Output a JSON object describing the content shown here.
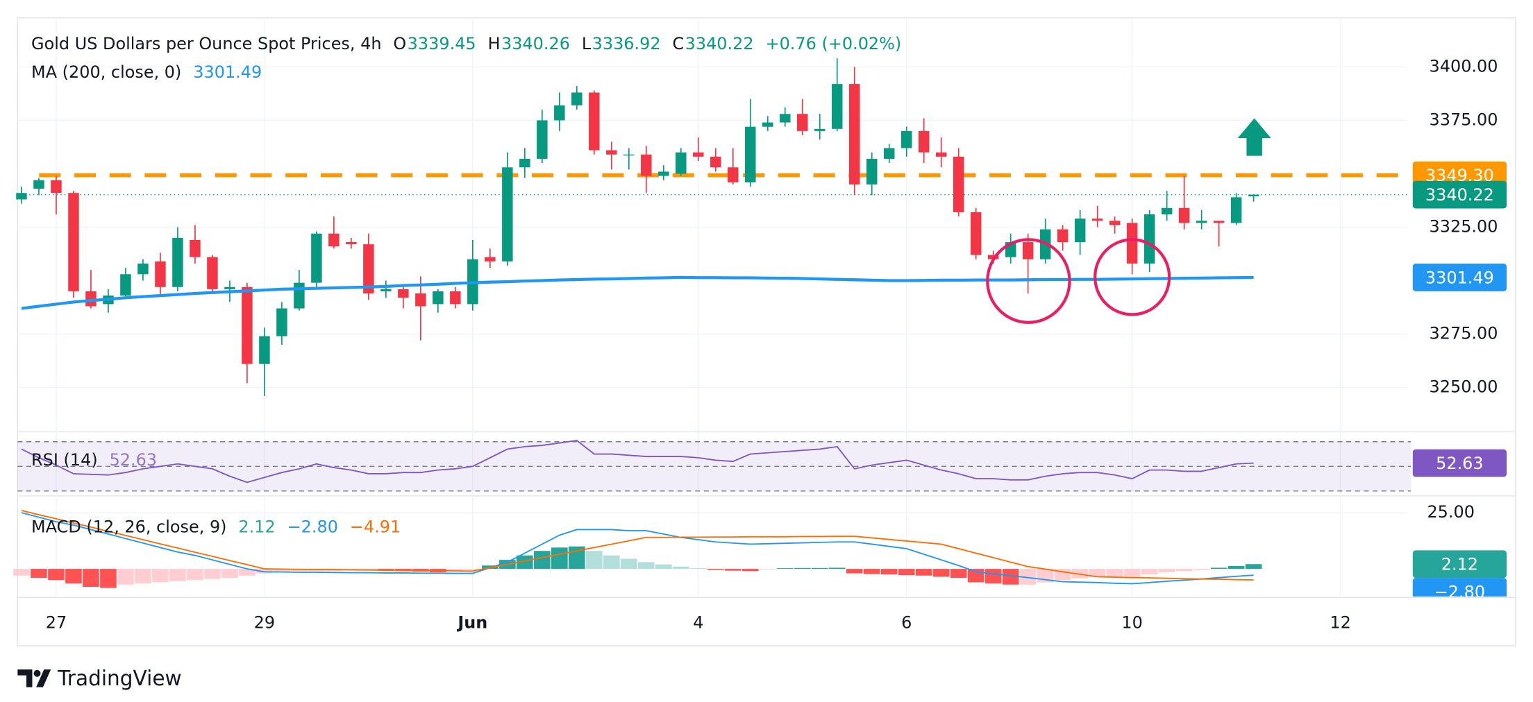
{
  "chart_data": {
    "type": "candlestick",
    "title": "Gold US Dollars per Ounce Spot Prices, 4h",
    "header": [
      {
        "label": "O",
        "value": 3339.45
      },
      {
        "label": "H",
        "value": 3340.26
      },
      {
        "label": "L",
        "value": 3336.92
      },
      {
        "label": "C",
        "value": 3340.22
      }
    ],
    "change": "+0.76 (+0.02%)",
    "up_color": "#089981",
    "down_color": "#f23645",
    "categories": [
      null,
      null,
      "27",
      null,
      null,
      null,
      null,
      null,
      null,
      null,
      null,
      null,
      null,
      null,
      "29",
      null,
      null,
      null,
      null,
      null,
      null,
      null,
      null,
      null,
      null,
      null,
      "Jun",
      null,
      null,
      null,
      null,
      null,
      null,
      null,
      null,
      null,
      null,
      null,
      null,
      "4",
      null,
      null,
      null,
      null,
      null,
      null,
      null,
      null,
      null,
      null,
      null,
      "6",
      null,
      null,
      null,
      null,
      null,
      null,
      null,
      null,
      null,
      null,
      null,
      null,
      "10",
      null,
      null,
      null,
      null,
      null,
      null,
      null,
      null,
      null,
      null,
      null,
      "12",
      null,
      null,
      null
    ],
    "open": [
      3338,
      3343,
      3347,
      3341,
      3295,
      3289,
      3293,
      3303,
      3309,
      3297,
      3319,
      3311,
      3296,
      3297,
      3261,
      3274,
      3287,
      3299,
      3322,
      3318,
      3317,
      3295,
      3296,
      3294,
      3289,
      3295,
      3289,
      3311,
      3309,
      3353,
      3357,
      3375,
      3382,
      3388,
      3361,
      3359,
      3359,
      3349,
      3350,
      3360,
      3358,
      3353,
      3346,
      3372,
      3374,
      3378,
      3370,
      3371,
      3392,
      3345,
      3357,
      3362,
      3370,
      3360,
      3358,
      3332,
      3312,
      3311,
      3318,
      3310,
      3324,
      3318,
      3329,
      3328,
      3327,
      3308,
      3331,
      3334,
      3327,
      3328,
      3327,
      3339.45,
      null,
      null,
      null,
      null,
      null,
      null,
      null,
      null
    ],
    "high": [
      3344,
      3348,
      3349,
      3342,
      3305,
      3296,
      3306,
      3310,
      3313,
      3325,
      3326,
      3312,
      3300,
      3299,
      3278,
      3290,
      3305,
      3323,
      3330,
      3320,
      3322,
      3300,
      3298,
      3302,
      3296,
      3297,
      3319,
      3315,
      3360,
      3362,
      3380,
      3388,
      3391,
      3389,
      3365,
      3362,
      3363,
      3354,
      3362,
      3367,
      3362,
      3362,
      3385,
      3377,
      3381,
      3385,
      3378,
      3404,
      3400,
      3360,
      3364,
      3372,
      3376,
      3367,
      3362,
      3334,
      3314,
      3322,
      3322,
      3329,
      3326,
      3333,
      3335,
      3330,
      3329,
      3333,
      3342,
      3349,
      3333,
      3328,
      3341,
      3340.26,
      null,
      null,
      null,
      null,
      null,
      null,
      null,
      null
    ],
    "low": [
      3336,
      3340,
      3331,
      3292,
      3287,
      3285,
      3292,
      3300,
      3293,
      3295,
      3308,
      3294,
      3290,
      3252,
      3246,
      3270,
      3286,
      3297,
      3315,
      3315,
      3291,
      3292,
      3287,
      3272,
      3285,
      3287,
      3286,
      3306,
      3307,
      3348,
      3355,
      3370,
      3380,
      3359,
      3352,
      3352,
      3341,
      3347,
      3349,
      3356,
      3351,
      3345,
      3344,
      3370,
      3372,
      3368,
      3366,
      3370,
      3340,
      3340,
      3355,
      3358,
      3355,
      3353,
      3330,
      3310,
      3308,
      3308,
      3294,
      3308,
      3314,
      3312,
      3325,
      3322,
      3303,
      3304,
      3328,
      3324,
      3324,
      3316,
      3326,
      3336.92,
      null,
      null,
      null,
      null,
      null,
      null,
      null,
      null
    ],
    "close": [
      3341,
      3347,
      3341,
      3295,
      3288,
      3293,
      3303,
      3308,
      3297,
      3320,
      3311,
      3296,
      3297,
      3261,
      3274,
      3287,
      3299,
      3322,
      3316,
      3317,
      3294,
      3296,
      3292,
      3288,
      3295,
      3289,
      3310,
      3309,
      3353,
      3357,
      3375,
      3382,
      3388,
      3361,
      3359,
      3359,
      3349,
      3351,
      3360,
      3358,
      3353,
      3346,
      3372,
      3374,
      3378,
      3370,
      3371,
      3392,
      3345,
      3357,
      3362,
      3370,
      3360,
      3358,
      3332,
      3312,
      3310,
      3318,
      3310,
      3324,
      3318,
      3329,
      3328,
      3326,
      3308,
      3331,
      3334,
      3327,
      3328,
      3327,
      3339,
      3340.22,
      null,
      null,
      null,
      null,
      null,
      null,
      null,
      null
    ],
    "ylim": [
      3229.7,
      3423
    ],
    "yticks": [
      {
        "value": 3250,
        "label": "3250.00"
      },
      {
        "value": 3275,
        "label": "3275.00"
      },
      {
        "value": 3325,
        "label": "3325.00"
      },
      {
        "value": 3375,
        "label": "3375.00"
      },
      {
        "value": 3400,
        "label": "3400.00"
      }
    ],
    "grid": true,
    "resistance": {
      "value": 3349.3,
      "label": "3349.30",
      "color": "#ff9800"
    },
    "ma": {
      "name": "MA (200, close, 0)",
      "value": 3301.49,
      "color": "#2196f3",
      "values": [
        3287,
        3288,
        3289,
        3290,
        3290.7,
        3291.3,
        3292,
        3292.5,
        3293,
        3293.5,
        3294,
        3294.4,
        3294.8,
        3295.2,
        3295.6,
        3296,
        3296.2,
        3296.4,
        3296.6,
        3296.8,
        3297,
        3297.3,
        3297.7,
        3298,
        3298.3,
        3298.7,
        3299,
        3299.3,
        3299.5,
        3299.8,
        3300,
        3300.3,
        3300.5,
        3300.7,
        3300.8,
        3301,
        3301.2,
        3301.3,
        3301.5,
        3301.4,
        3301.4,
        3301.3,
        3301.3,
        3301.2,
        3301.1,
        3301,
        3300.8,
        3300.6,
        3300.4,
        3300.2,
        3300,
        3300,
        3300.1,
        3300.2,
        3300.2,
        3300.3,
        3300.3,
        3300.3,
        3300.4,
        3300.5,
        3300.5,
        3300.6,
        3300.6,
        3300.7,
        3300.8,
        3300.9,
        3301,
        3301.1,
        3301.2,
        3301.3,
        3301.4,
        3301.49,
        null,
        null,
        null,
        null,
        null,
        null,
        null,
        null
      ]
    },
    "rsi": {
      "name": "RSI (14)",
      "value": 52.63,
      "color": "#7e57c2",
      "ylim": [
        28.4,
        76.4
      ],
      "levels": [
        30,
        50,
        70
      ],
      "values": [
        64,
        57,
        51,
        44,
        43.5,
        43,
        45,
        48,
        50,
        52,
        50,
        48,
        42,
        37,
        41,
        45,
        48,
        52,
        49,
        47,
        44,
        44,
        45,
        45,
        47,
        48,
        50,
        57,
        64,
        66,
        67,
        69,
        71,
        60,
        60,
        59,
        58,
        58,
        58,
        57,
        55,
        54,
        60,
        61,
        62,
        63,
        64,
        66,
        48,
        51,
        53,
        55,
        51,
        47,
        44,
        40,
        40,
        39,
        39,
        42,
        44,
        45,
        45,
        43,
        40,
        47,
        47,
        46,
        46,
        49,
        52,
        52.63,
        null,
        null,
        null,
        null,
        null,
        null,
        null,
        null
      ]
    },
    "macd": {
      "name": "MACD (12, 26, close, 9)",
      "ylim": [
        -12.3,
        31.6
      ],
      "yticks": [
        {
          "value": 25,
          "label": "25.00"
        }
      ],
      "histogram": {
        "value": 2.12,
        "color": "#26a69a",
        "values": [
          -3,
          -4,
          -5,
          -6.5,
          -8,
          -8.5,
          -7,
          -6.5,
          -6,
          -5.5,
          -5,
          -4.5,
          -4,
          -3,
          -2,
          -1.5,
          -1,
          -1,
          -1,
          -0.8,
          -0.5,
          -0.8,
          -1,
          -1.2,
          -1.5,
          -1,
          -0.5,
          1.5,
          4,
          6,
          8,
          9.5,
          10,
          8,
          6,
          4.5,
          3,
          2,
          1,
          0.3,
          -0.5,
          -0.8,
          -1,
          -0.3,
          0.3,
          0.4,
          0.4,
          0.5,
          -2,
          -2.3,
          -2.5,
          -2.8,
          -3,
          -3.5,
          -4,
          -6,
          -6.5,
          -7,
          -7,
          -6,
          -5,
          -4.2,
          -3.5,
          -3.5,
          -3.5,
          -2.5,
          -1.5,
          -1,
          -0.5,
          0.5,
          1.3,
          2.12,
          null,
          null,
          null,
          null,
          null,
          null,
          null,
          null
        ]
      },
      "macd_line": {
        "value": -2.8,
        "label": "−2.80",
        "color": "#2196f3",
        "values": [
          25,
          23,
          21,
          19.5,
          17.5,
          15.5,
          13.5,
          11.5,
          9.5,
          7.5,
          6,
          4,
          2,
          0,
          -1.3,
          -1.4,
          -1.5,
          -1.5,
          -1.6,
          -1.7,
          -1.7,
          -1.8,
          -1.8,
          -1.9,
          -1.9,
          -2,
          -2,
          0.5,
          3,
          7,
          11,
          15,
          17.5,
          17.5,
          17.5,
          17,
          17,
          15.5,
          14,
          13,
          12,
          11.5,
          11,
          11.2,
          11.4,
          11.6,
          11.8,
          12,
          12,
          11,
          10,
          9,
          6.5,
          4,
          1.5,
          -1.3,
          -2.2,
          -3,
          -3.9,
          -4.8,
          -5.7,
          -5.9,
          -6.1,
          -6.4,
          -6.6,
          -6.1,
          -5.5,
          -5,
          -4.5,
          -3.9,
          -3.3,
          -2.8,
          null,
          null,
          null,
          null,
          null,
          null,
          null,
          null
        ]
      },
      "signal": {
        "value": -4.91,
        "label": "−4.91",
        "color": "#ff6d00",
        "values": [
          26,
          24.1,
          22.3,
          20.4,
          18.6,
          16.7,
          14.9,
          13,
          11.1,
          9.3,
          7.4,
          5.6,
          3.7,
          1.9,
          0,
          -0.1,
          -0.2,
          -0.3,
          -0.3,
          -0.4,
          -0.5,
          -0.6,
          -0.7,
          -0.8,
          -0.8,
          -0.9,
          -1,
          0.5,
          2,
          3.5,
          5,
          6.5,
          8,
          9.5,
          11,
          12.5,
          14,
          14,
          14.1,
          14.1,
          14.2,
          14.2,
          14.3,
          14.3,
          14.3,
          14.4,
          14.4,
          14.5,
          14.5,
          13.8,
          13.1,
          12.4,
          11.7,
          11,
          9,
          7,
          5,
          3,
          1,
          -0.1,
          -1.3,
          -2.4,
          -3.5,
          -3.7,
          -3.9,
          -4,
          -4.2,
          -4.4,
          -4.5,
          -4.6,
          -4.8,
          -4.91,
          null,
          null,
          null,
          null,
          null,
          null,
          null,
          null
        ]
      }
    },
    "brand": "TradingView"
  }
}
